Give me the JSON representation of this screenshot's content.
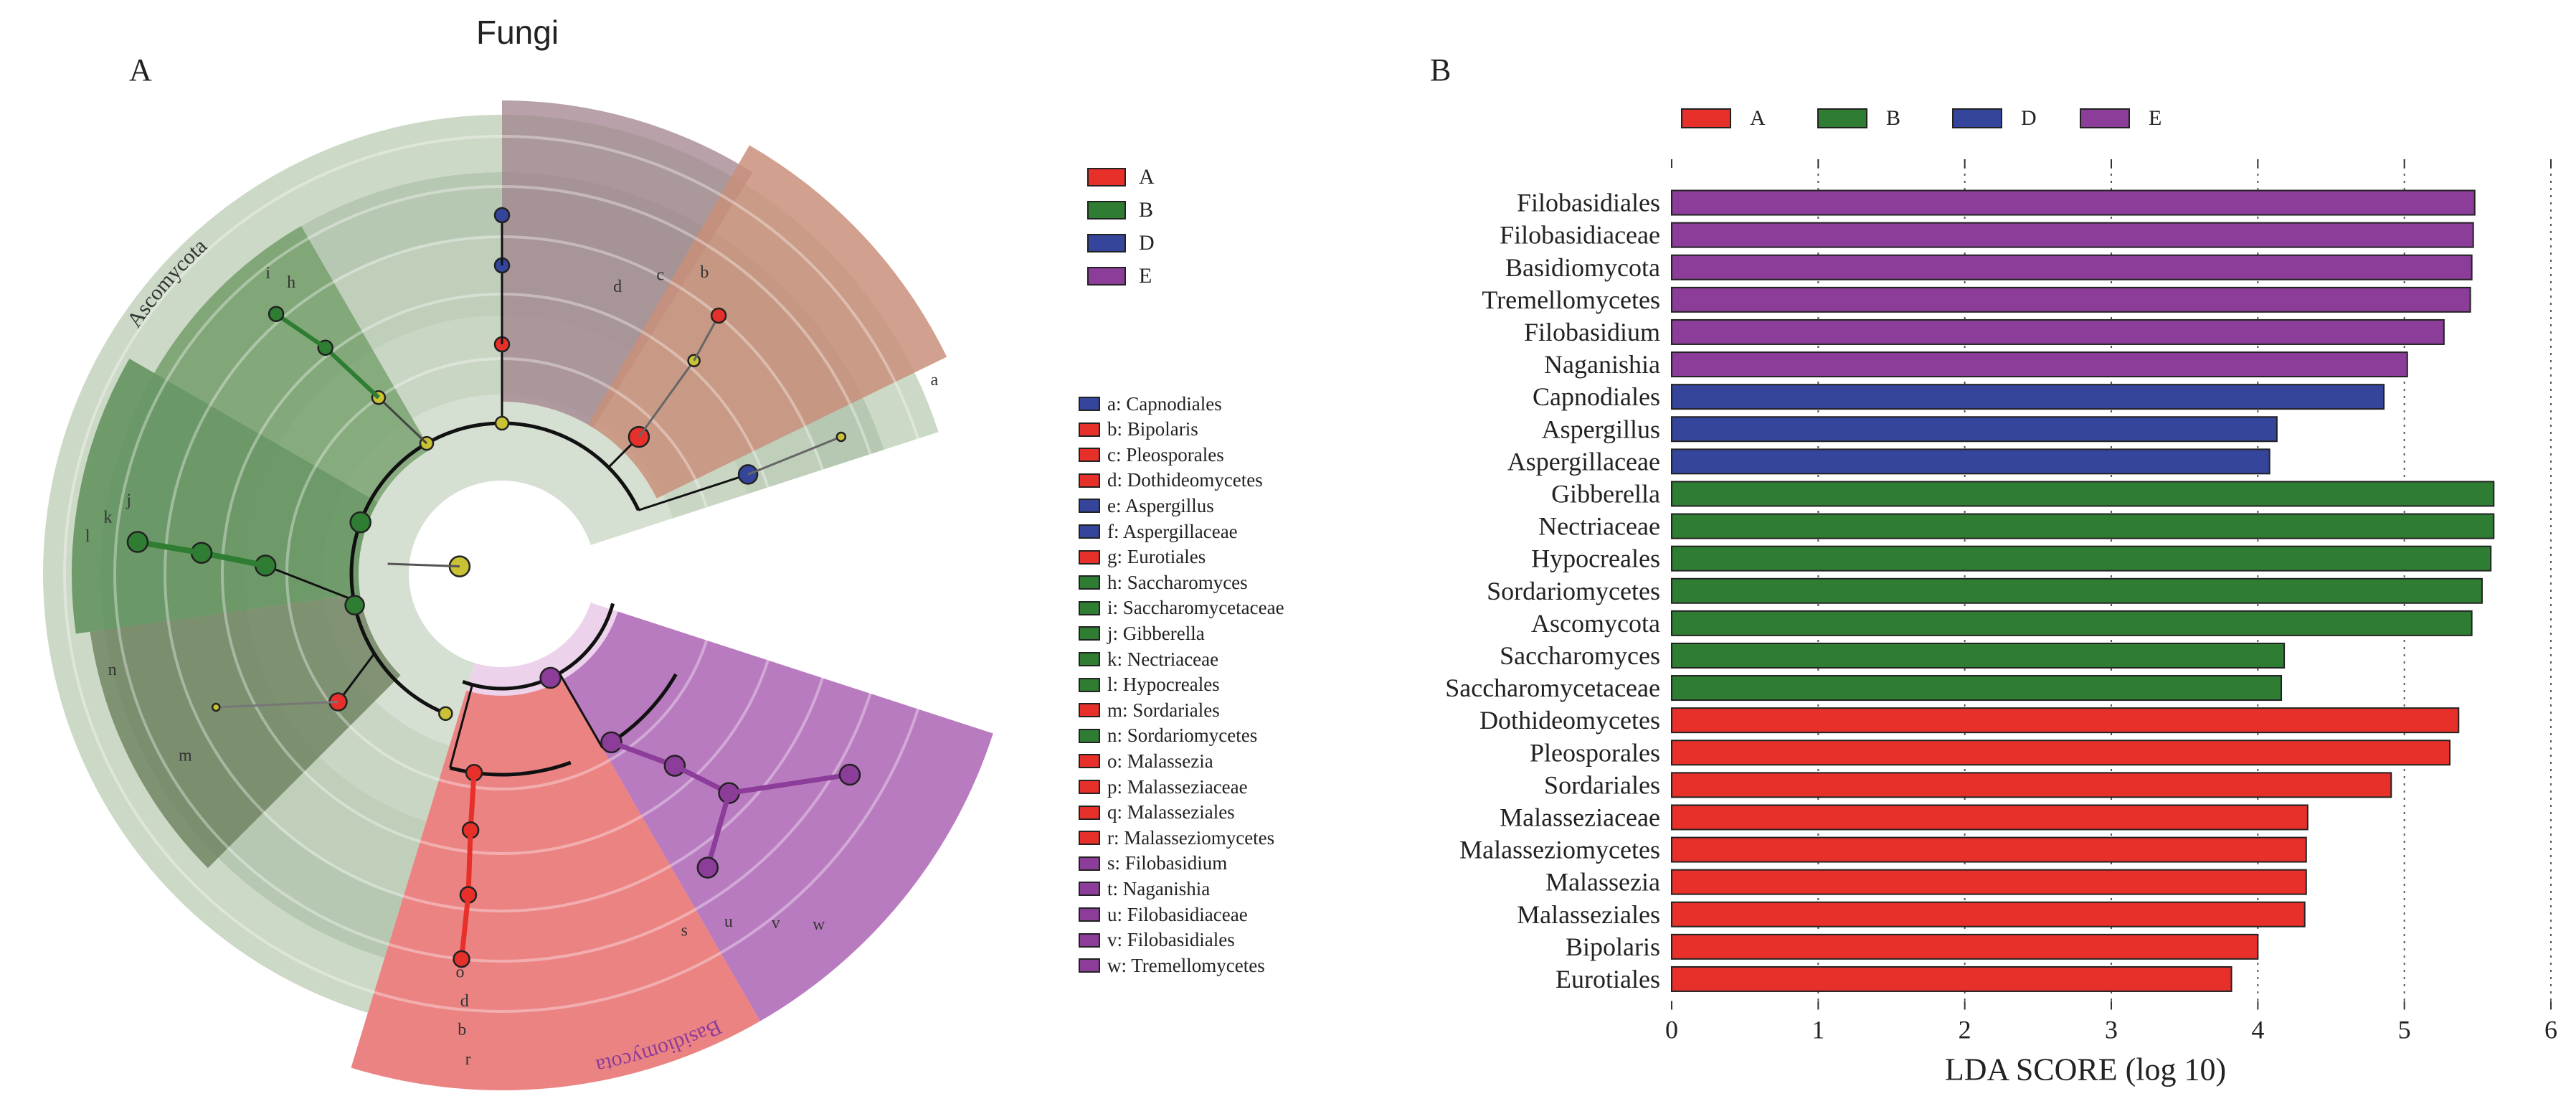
{
  "figure": {
    "panel_a_label": "A",
    "panel_b_label": "B",
    "cladogram_title": "Fungi"
  },
  "groups": [
    {
      "name": "A",
      "color": "#e8302a"
    },
    {
      "name": "B",
      "color": "#2e7d32"
    },
    {
      "name": "D",
      "color": "#34459b"
    },
    {
      "name": "E",
      "color": "#8c3c99"
    }
  ],
  "cladogram": {
    "phylum_labels": [
      "Ascomycota",
      "Basidiomycota"
    ],
    "taxa": [
      {
        "key": "a",
        "name": "Capnodiales",
        "group": "D"
      },
      {
        "key": "b",
        "name": "Bipolaris",
        "group": "A"
      },
      {
        "key": "c",
        "name": "Pleosporales",
        "group": "A"
      },
      {
        "key": "d",
        "name": "Dothideomycetes",
        "group": "A"
      },
      {
        "key": "e",
        "name": "Aspergillus",
        "group": "D"
      },
      {
        "key": "f",
        "name": "Aspergillaceae",
        "group": "D"
      },
      {
        "key": "g",
        "name": "Eurotiales",
        "group": "A"
      },
      {
        "key": "h",
        "name": "Saccharomyces",
        "group": "B"
      },
      {
        "key": "i",
        "name": "Saccharomycetaceae",
        "group": "B"
      },
      {
        "key": "j",
        "name": "Gibberella",
        "group": "B"
      },
      {
        "key": "k",
        "name": "Nectriaceae",
        "group": "B"
      },
      {
        "key": "l",
        "name": "Hypocreales",
        "group": "B"
      },
      {
        "key": "m",
        "name": "Sordariales",
        "group": "A"
      },
      {
        "key": "n",
        "name": "Sordariomycetes",
        "group": "B"
      },
      {
        "key": "o",
        "name": "Malassezia",
        "group": "A"
      },
      {
        "key": "p",
        "name": "Malasseziaceae",
        "group": "A"
      },
      {
        "key": "q",
        "name": "Malasseziales",
        "group": "A"
      },
      {
        "key": "r",
        "name": "Malasseziomycetes",
        "group": "A"
      },
      {
        "key": "s",
        "name": "Filobasidium",
        "group": "E"
      },
      {
        "key": "t",
        "name": "Naganishia",
        "group": "E"
      },
      {
        "key": "u",
        "name": "Filobasidiaceae",
        "group": "E"
      },
      {
        "key": "v",
        "name": "Filobasidiales",
        "group": "E"
      },
      {
        "key": "w",
        "name": "Tremellomycetes",
        "group": "E"
      }
    ],
    "sector_labels": {
      "D": [
        "d",
        "c",
        "b",
        "a"
      ],
      "B1": [
        "i",
        "h"
      ],
      "B2": [
        "l",
        "k",
        "j"
      ],
      "A1": [
        "n",
        "m"
      ],
      "A2": [
        "o",
        "d",
        "b",
        "r"
      ],
      "E": [
        "s",
        "u",
        "v",
        "w"
      ]
    }
  },
  "chart_data": {
    "type": "bar",
    "orientation": "horizontal",
    "xlabel": "LDA SCORE (log 10)",
    "xlim": [
      0,
      6
    ],
    "xticks": [
      0,
      1,
      2,
      3,
      4,
      5,
      6
    ],
    "legend": [
      "A",
      "B",
      "D",
      "E"
    ],
    "legend_position": "top",
    "grid": "vertical dotted",
    "bars": [
      {
        "label": "Filobasidiales",
        "value": 5.48,
        "group": "E"
      },
      {
        "label": "Filobasidiaceae",
        "value": 5.47,
        "group": "E"
      },
      {
        "label": "Basidiomycota",
        "value": 5.46,
        "group": "E"
      },
      {
        "label": "Tremellomycetes",
        "value": 5.45,
        "group": "E"
      },
      {
        "label": "Filobasidium",
        "value": 5.27,
        "group": "E"
      },
      {
        "label": "Naganishia",
        "value": 5.02,
        "group": "E"
      },
      {
        "label": "Capnodiales",
        "value": 4.86,
        "group": "D"
      },
      {
        "label": "Aspergillus",
        "value": 4.13,
        "group": "D"
      },
      {
        "label": "Aspergillaceae",
        "value": 4.08,
        "group": "D"
      },
      {
        "label": "Gibberella",
        "value": 5.61,
        "group": "B"
      },
      {
        "label": "Nectriaceae",
        "value": 5.61,
        "group": "B"
      },
      {
        "label": "Hypocreales",
        "value": 5.59,
        "group": "B"
      },
      {
        "label": "Sordariomycetes",
        "value": 5.53,
        "group": "B"
      },
      {
        "label": "Ascomycota",
        "value": 5.46,
        "group": "B"
      },
      {
        "label": "Saccharomyces",
        "value": 4.18,
        "group": "B"
      },
      {
        "label": "Saccharomycetaceae",
        "value": 4.16,
        "group": "B"
      },
      {
        "label": "Dothideomycetes",
        "value": 5.37,
        "group": "A"
      },
      {
        "label": "Pleosporales",
        "value": 5.31,
        "group": "A"
      },
      {
        "label": "Sordariales",
        "value": 4.91,
        "group": "A"
      },
      {
        "label": "Malasseziaceae",
        "value": 4.34,
        "group": "A"
      },
      {
        "label": "Malasseziomycetes",
        "value": 4.33,
        "group": "A"
      },
      {
        "label": "Malassezia",
        "value": 4.33,
        "group": "A"
      },
      {
        "label": "Malasseziales",
        "value": 4.32,
        "group": "A"
      },
      {
        "label": "Bipolaris",
        "value": 4.0,
        "group": "A"
      },
      {
        "label": "Eurotiales",
        "value": 3.82,
        "group": "A"
      }
    ]
  }
}
